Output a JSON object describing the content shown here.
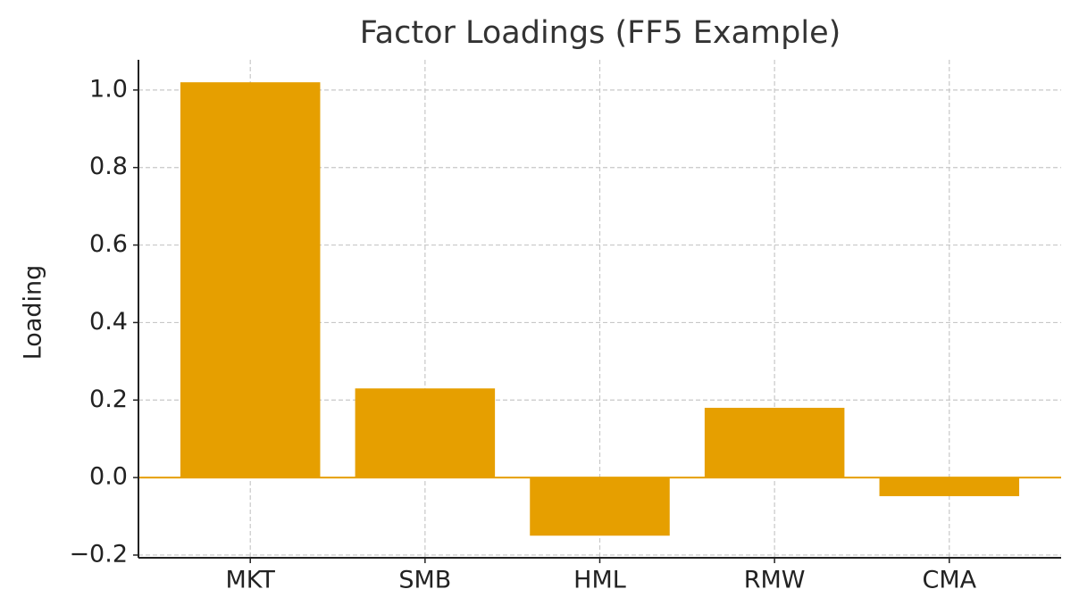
{
  "chart_data": {
    "type": "bar",
    "title": "Factor Loadings (FF5 Example)",
    "ylabel": "Loading",
    "categories": [
      "MKT",
      "SMB",
      "HML",
      "RMW",
      "CMA"
    ],
    "values": [
      1.02,
      0.23,
      -0.15,
      0.18,
      -0.048
    ],
    "color": "#E69F00",
    "ylim": [
      -0.207,
      1.078
    ],
    "yticks": [
      {
        "value": -0.2,
        "label": "−0.2"
      },
      {
        "value": 0,
        "label": "0.0"
      },
      {
        "value": 0.2,
        "label": "0.2"
      },
      {
        "value": 0.4,
        "label": "0.4"
      },
      {
        "value": 0.6,
        "label": "0.6"
      },
      {
        "value": 0.8,
        "label": "0.8"
      },
      {
        "value": 1.0,
        "label": "1.0"
      }
    ],
    "grid": true
  }
}
